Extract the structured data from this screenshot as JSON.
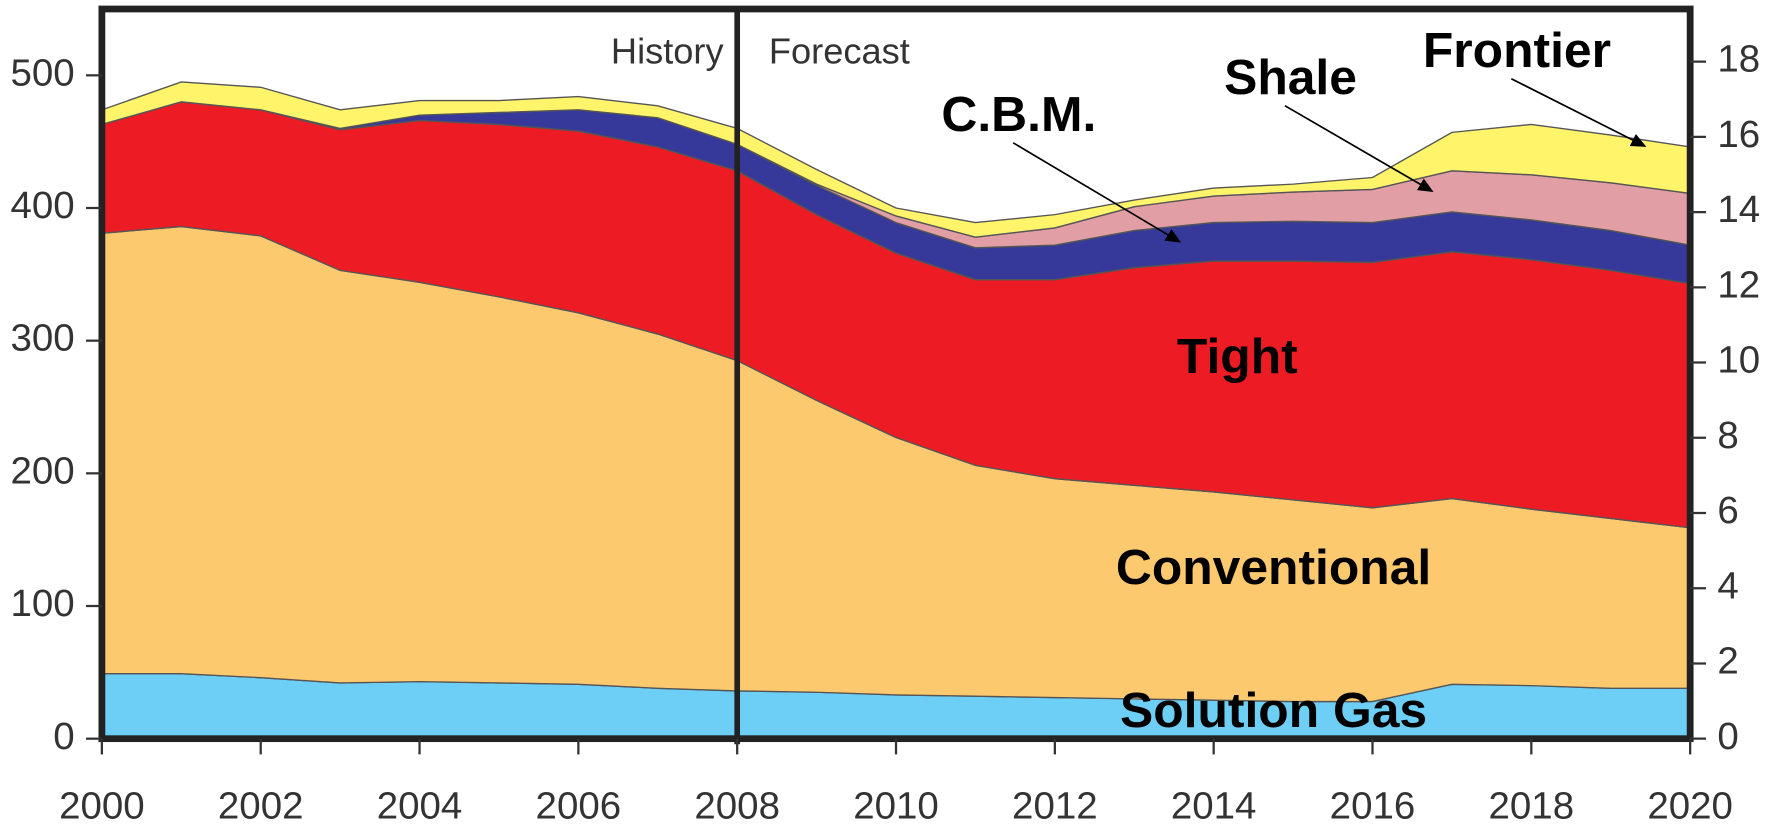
{
  "chart_data": {
    "type": "stacked_area",
    "x": [
      2000,
      2001,
      2002,
      2003,
      2004,
      2005,
      2006,
      2007,
      2008,
      2009,
      2010,
      2011,
      2012,
      2013,
      2014,
      2015,
      2016,
      2017,
      2018,
      2019,
      2020
    ],
    "series": [
      {
        "name": "Solution Gas",
        "color": "#6dcff6",
        "values": [
          49,
          49,
          46,
          42,
          43,
          42,
          41,
          38,
          36,
          35,
          33,
          32,
          31,
          30,
          29,
          28,
          28,
          41,
          40,
          38,
          38
        ]
      },
      {
        "name": "Conventional",
        "color": "#fdc96f",
        "values": [
          332,
          337,
          333,
          311,
          301,
          291,
          280,
          267,
          249,
          220,
          194,
          174,
          165,
          161,
          157,
          152,
          146,
          140,
          133,
          128,
          121
        ]
      },
      {
        "name": "Tight",
        "color": "#ed1c24",
        "values": [
          82,
          94,
          95,
          106,
          122,
          130,
          137,
          141,
          143,
          140,
          139,
          140,
          150,
          164,
          174,
          180,
          185,
          186,
          188,
          187,
          184
        ]
      },
      {
        "name": "C.B.M.",
        "color": "#36399a",
        "values": [
          0,
          0,
          0,
          1,
          4,
          9,
          16,
          22,
          20,
          22,
          23,
          24,
          26,
          28,
          29,
          30,
          30,
          30,
          30,
          30,
          29
        ]
      },
      {
        "name": "Shale",
        "color": "#e29ea5",
        "values": [
          0,
          0,
          0,
          0,
          0,
          0,
          0,
          0,
          0,
          1,
          5,
          8,
          13,
          18,
          20,
          22,
          25,
          31,
          34,
          36,
          39
        ]
      },
      {
        "name": "Frontier",
        "color": "#fff46a",
        "values": [
          11,
          15,
          17,
          14,
          11,
          9,
          10,
          9,
          12,
          11,
          6,
          11,
          10,
          5,
          6,
          6,
          9,
          29,
          38,
          36,
          35
        ]
      }
    ],
    "xlim": [
      2000,
      2020
    ],
    "xticks": [
      2000,
      2002,
      2004,
      2006,
      2008,
      2010,
      2012,
      2014,
      2016,
      2018,
      2020
    ],
    "ylim": [
      0,
      550
    ],
    "yticks": [
      0,
      100,
      200,
      300,
      400,
      500
    ],
    "y2lim": [
      0,
      19.4
    ],
    "y2ticks": [
      0,
      2,
      4,
      6,
      8,
      10,
      12,
      14,
      16,
      18
    ],
    "forecast_start": 2008,
    "annotations": [
      "History",
      "Forecast"
    ]
  }
}
